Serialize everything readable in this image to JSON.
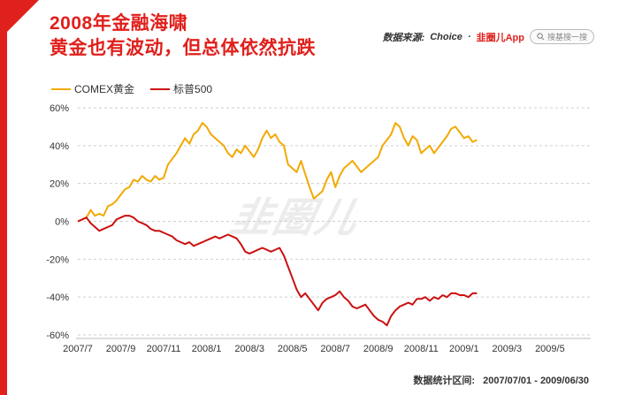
{
  "header": {
    "title_line1": "2008年金融海啸",
    "title_line2": "黄金也有波动，但总体依然抗跌",
    "source_prefix": "数据来源: ",
    "source_name": "Choice",
    "source_sep": "·",
    "brand": "韭圈儿App",
    "search_text": "搜基搜一搜"
  },
  "watermark": "韭圈儿",
  "footer": {
    "label": "数据统计区间:",
    "range": "2007/07/01 - 2009/06/30"
  },
  "colors": {
    "accent": "#e0201c",
    "gold": "#f2a900",
    "sp500": "#cc1010"
  },
  "chart_data": {
    "type": "line",
    "title": "2008年金融海啸",
    "subtitle": "黄金也有波动，但总体依然抗跌",
    "xlabel": "",
    "ylabel": "",
    "ylim": [
      -60,
      60
    ],
    "y_ticks": [
      "60%",
      "40%",
      "20%",
      "0%",
      "-20%",
      "-40%",
      "-60%"
    ],
    "x_ticks": [
      "2007/7",
      "2007/9",
      "2007/11",
      "2008/1",
      "2008/3",
      "2008/5",
      "2008/7",
      "2008/9",
      "2008/11",
      "2009/1",
      "2009/3",
      "2009/5"
    ],
    "grid": "horizontal dashed",
    "legend_position": "top-left",
    "series": [
      {
        "name": "COMEX黄金",
        "color": "#f2a900",
        "points": [
          [
            0.0,
            0
          ],
          [
            0.2,
            1
          ],
          [
            0.4,
            2
          ],
          [
            0.6,
            6
          ],
          [
            0.8,
            3
          ],
          [
            1.0,
            4
          ],
          [
            1.2,
            3
          ],
          [
            1.4,
            8
          ],
          [
            1.6,
            9
          ],
          [
            1.8,
            11
          ],
          [
            2.0,
            14
          ],
          [
            2.2,
            17
          ],
          [
            2.4,
            18
          ],
          [
            2.6,
            22
          ],
          [
            2.8,
            21
          ],
          [
            3.0,
            24
          ],
          [
            3.2,
            22
          ],
          [
            3.4,
            21
          ],
          [
            3.6,
            24
          ],
          [
            3.8,
            22
          ],
          [
            4.0,
            23
          ],
          [
            4.2,
            30
          ],
          [
            4.4,
            33
          ],
          [
            4.6,
            36
          ],
          [
            4.8,
            40
          ],
          [
            5.0,
            44
          ],
          [
            5.2,
            41
          ],
          [
            5.4,
            46
          ],
          [
            5.6,
            48
          ],
          [
            5.8,
            52
          ],
          [
            6.0,
            50
          ],
          [
            6.2,
            46
          ],
          [
            6.4,
            44
          ],
          [
            6.6,
            42
          ],
          [
            6.8,
            40
          ],
          [
            7.0,
            36
          ],
          [
            7.2,
            34
          ],
          [
            7.4,
            38
          ],
          [
            7.6,
            36
          ],
          [
            7.8,
            40
          ],
          [
            8.0,
            37
          ],
          [
            8.2,
            34
          ],
          [
            8.4,
            38
          ],
          [
            8.6,
            44
          ],
          [
            8.8,
            48
          ],
          [
            9.0,
            44
          ],
          [
            9.2,
            46
          ],
          [
            9.4,
            42
          ],
          [
            9.6,
            40
          ],
          [
            9.8,
            30
          ],
          [
            10.0,
            28
          ],
          [
            10.2,
            26
          ],
          [
            10.4,
            32
          ],
          [
            10.6,
            25
          ],
          [
            10.8,
            18
          ],
          [
            11.0,
            12
          ],
          [
            11.2,
            14
          ],
          [
            11.4,
            16
          ],
          [
            11.6,
            22
          ],
          [
            11.8,
            26
          ],
          [
            12.0,
            18
          ],
          [
            12.2,
            24
          ],
          [
            12.4,
            28
          ],
          [
            12.6,
            30
          ],
          [
            12.8,
            32
          ],
          [
            13.0,
            29
          ],
          [
            13.2,
            26
          ],
          [
            13.4,
            28
          ],
          [
            13.6,
            30
          ],
          [
            13.8,
            32
          ],
          [
            14.0,
            34
          ],
          [
            14.2,
            40
          ],
          [
            14.4,
            43
          ],
          [
            14.6,
            46
          ],
          [
            14.8,
            52
          ],
          [
            15.0,
            50
          ],
          [
            15.2,
            44
          ],
          [
            15.4,
            40
          ],
          [
            15.6,
            45
          ],
          [
            15.8,
            43
          ],
          [
            16.0,
            36
          ],
          [
            16.2,
            38
          ],
          [
            16.4,
            40
          ],
          [
            16.6,
            36
          ],
          [
            16.8,
            39
          ],
          [
            17.0,
            42
          ],
          [
            17.2,
            45
          ],
          [
            17.4,
            49
          ],
          [
            17.6,
            50
          ],
          [
            17.8,
            47
          ],
          [
            18.0,
            44
          ],
          [
            18.2,
            45
          ],
          [
            18.4,
            42
          ],
          [
            18.6,
            43
          ]
        ]
      },
      {
        "name": "标普500",
        "color": "#cc1010",
        "points": [
          [
            0.0,
            0
          ],
          [
            0.2,
            1
          ],
          [
            0.4,
            2
          ],
          [
            0.6,
            -1
          ],
          [
            0.8,
            -3
          ],
          [
            1.0,
            -5
          ],
          [
            1.2,
            -4
          ],
          [
            1.4,
            -3
          ],
          [
            1.6,
            -2
          ],
          [
            1.8,
            1
          ],
          [
            2.0,
            2
          ],
          [
            2.2,
            3
          ],
          [
            2.4,
            3
          ],
          [
            2.6,
            2
          ],
          [
            2.8,
            0
          ],
          [
            3.0,
            -1
          ],
          [
            3.2,
            -2
          ],
          [
            3.4,
            -4
          ],
          [
            3.6,
            -5
          ],
          [
            3.8,
            -5
          ],
          [
            4.0,
            -6
          ],
          [
            4.2,
            -7
          ],
          [
            4.4,
            -8
          ],
          [
            4.6,
            -10
          ],
          [
            4.8,
            -11
          ],
          [
            5.0,
            -12
          ],
          [
            5.2,
            -11
          ],
          [
            5.4,
            -13
          ],
          [
            5.6,
            -12
          ],
          [
            5.8,
            -11
          ],
          [
            6.0,
            -10
          ],
          [
            6.2,
            -9
          ],
          [
            6.4,
            -8
          ],
          [
            6.6,
            -9
          ],
          [
            6.8,
            -8
          ],
          [
            7.0,
            -7
          ],
          [
            7.2,
            -8
          ],
          [
            7.4,
            -9
          ],
          [
            7.6,
            -12
          ],
          [
            7.8,
            -16
          ],
          [
            8.0,
            -17
          ],
          [
            8.2,
            -16
          ],
          [
            8.4,
            -15
          ],
          [
            8.6,
            -14
          ],
          [
            8.8,
            -15
          ],
          [
            9.0,
            -16
          ],
          [
            9.2,
            -15
          ],
          [
            9.4,
            -14
          ],
          [
            9.6,
            -18
          ],
          [
            9.8,
            -24
          ],
          [
            10.0,
            -30
          ],
          [
            10.2,
            -36
          ],
          [
            10.4,
            -40
          ],
          [
            10.6,
            -38
          ],
          [
            10.8,
            -41
          ],
          [
            11.0,
            -44
          ],
          [
            11.2,
            -47
          ],
          [
            11.4,
            -43
          ],
          [
            11.6,
            -41
          ],
          [
            11.8,
            -40
          ],
          [
            12.0,
            -39
          ],
          [
            12.2,
            -37
          ],
          [
            12.4,
            -40
          ],
          [
            12.6,
            -42
          ],
          [
            12.8,
            -45
          ],
          [
            13.0,
            -46
          ],
          [
            13.2,
            -45
          ],
          [
            13.4,
            -44
          ],
          [
            13.6,
            -47
          ],
          [
            13.8,
            -50
          ],
          [
            14.0,
            -52
          ],
          [
            14.2,
            -53
          ],
          [
            14.4,
            -55
          ],
          [
            14.6,
            -50
          ],
          [
            14.8,
            -47
          ],
          [
            15.0,
            -45
          ],
          [
            15.2,
            -44
          ],
          [
            15.4,
            -43
          ],
          [
            15.6,
            -44
          ],
          [
            15.8,
            -41
          ],
          [
            16.0,
            -41
          ],
          [
            16.2,
            -40
          ],
          [
            16.4,
            -42
          ],
          [
            16.6,
            -40
          ],
          [
            16.8,
            -41
          ],
          [
            17.0,
            -39
          ],
          [
            17.2,
            -40
          ],
          [
            17.4,
            -38
          ],
          [
            17.6,
            -38
          ],
          [
            17.8,
            -39
          ],
          [
            18.0,
            -39
          ],
          [
            18.2,
            -40
          ],
          [
            18.4,
            -38
          ],
          [
            18.6,
            -38
          ]
        ]
      }
    ]
  }
}
